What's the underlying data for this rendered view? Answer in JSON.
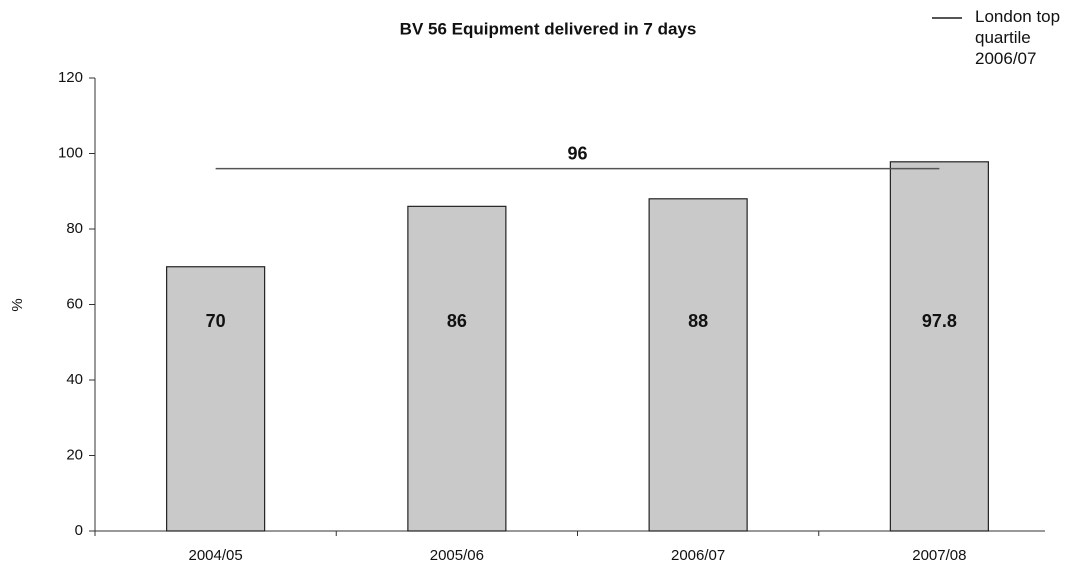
{
  "chart_data": {
    "type": "bar",
    "title": "BV 56 Equipment delivered in 7 days",
    "y_label": "%",
    "categories": [
      "2004/05",
      "2005/06",
      "2006/07",
      "2007/08"
    ],
    "values": [
      70,
      86,
      88,
      97.8
    ],
    "color": "#c9c9c9",
    "reference_line": {
      "name": "London top quartile 2006/07",
      "value": 96,
      "color": "#555555"
    },
    "ylim": [
      0,
      120
    ],
    "yticks": [
      0,
      20,
      40,
      60,
      80,
      100,
      120
    ]
  }
}
